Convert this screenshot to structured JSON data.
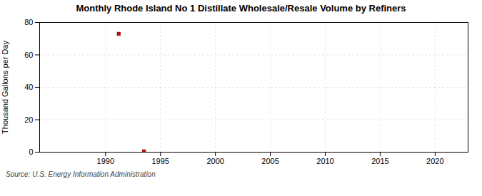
{
  "chart_data": {
    "type": "scatter",
    "title": "Monthly Rhode Island No 1 Distillate Wholesale/Resale Volume by Refiners",
    "ylabel": "Thousand Gallons per Day",
    "annotations": [
      "Source: U.S. Energy Information Administration"
    ],
    "x": [
      1991.2,
      1993.5
    ],
    "values": [
      73.0,
      0.5
    ],
    "color": "#aa1111",
    "marker": "square",
    "xlim": [
      1984,
      2023
    ],
    "ylim": [
      0,
      80
    ],
    "xticks": [
      1990,
      1995,
      2000,
      2005,
      2010,
      2015,
      2020
    ],
    "yticks": [
      0,
      20,
      40,
      60,
      80
    ],
    "grid": true
  }
}
